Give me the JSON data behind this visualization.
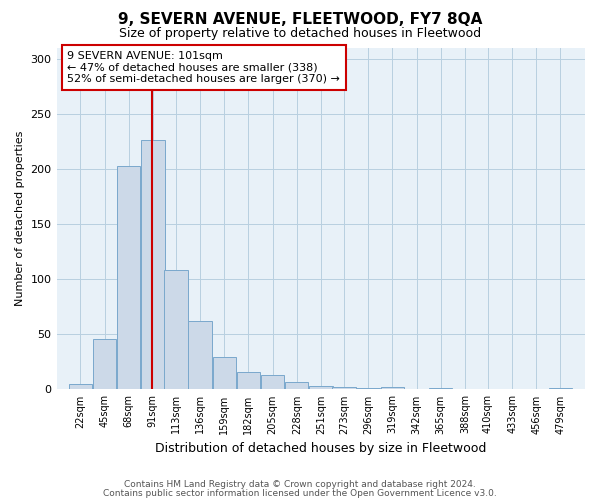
{
  "title": "9, SEVERN AVENUE, FLEETWOOD, FY7 8QA",
  "subtitle": "Size of property relative to detached houses in Fleetwood",
  "xlabel": "Distribution of detached houses by size in Fleetwood",
  "ylabel": "Number of detached properties",
  "bin_labels": [
    "22sqm",
    "45sqm",
    "68sqm",
    "91sqm",
    "113sqm",
    "136sqm",
    "159sqm",
    "182sqm",
    "205sqm",
    "228sqm",
    "251sqm",
    "273sqm",
    "296sqm",
    "319sqm",
    "342sqm",
    "365sqm",
    "388sqm",
    "410sqm",
    "433sqm",
    "456sqm",
    "479sqm"
  ],
  "bar_heights": [
    5,
    46,
    203,
    226,
    108,
    62,
    29,
    16,
    13,
    7,
    3,
    2,
    1,
    2,
    0,
    1,
    0,
    0,
    0,
    0,
    1
  ],
  "bar_color": "#ccd9e8",
  "bar_edge_color": "#7aa8cc",
  "grid_color": "#b8cfe0",
  "background_color": "#e8f1f8",
  "vline_color": "#cc0000",
  "annotation_text": "9 SEVERN AVENUE: 101sqm\n← 47% of detached houses are smaller (338)\n52% of semi-detached houses are larger (370) →",
  "annotation_box_color": "white",
  "annotation_box_edge": "#cc0000",
  "ylim": [
    0,
    310
  ],
  "yticks": [
    0,
    50,
    100,
    150,
    200,
    250,
    300
  ],
  "footer_line1": "Contains HM Land Registry data © Crown copyright and database right 2024.",
  "footer_line2": "Contains public sector information licensed under the Open Government Licence v3.0.",
  "bin_starts": [
    22,
    45,
    68,
    91,
    113,
    136,
    159,
    182,
    205,
    228,
    251,
    273,
    296,
    319,
    342,
    365,
    388,
    410,
    433,
    456,
    479
  ],
  "property_size": 101
}
